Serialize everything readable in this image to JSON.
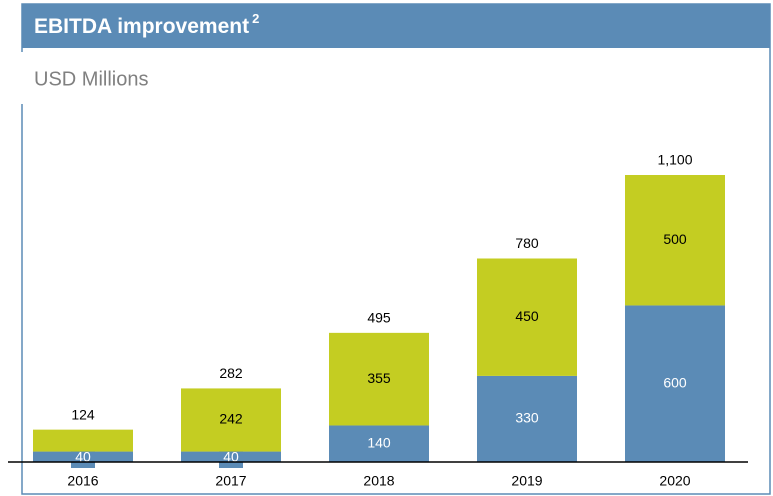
{
  "chart_data": {
    "type": "stacked_bar",
    "title": "EBITDA improvement",
    "title_footnote": "2",
    "subtitle": "USD Millions",
    "categories": [
      "2016",
      "2017",
      "2018",
      "2019",
      "2020"
    ],
    "series": [
      {
        "color": "#5b8bb6",
        "values": [
          40,
          40,
          140,
          330,
          600
        ]
      },
      {
        "color": "#c4cd22",
        "values": [
          84,
          242,
          355,
          450,
          500
        ],
        "value_labels": [
          null,
          "242",
          "355",
          "450",
          "500"
        ]
      }
    ],
    "totals": {
      "values": [
        124,
        282,
        495,
        780,
        1100
      ],
      "value_labels": [
        "124",
        "282",
        "495",
        "780",
        "1,100"
      ]
    },
    "ylim": [
      0,
      1100
    ]
  }
}
